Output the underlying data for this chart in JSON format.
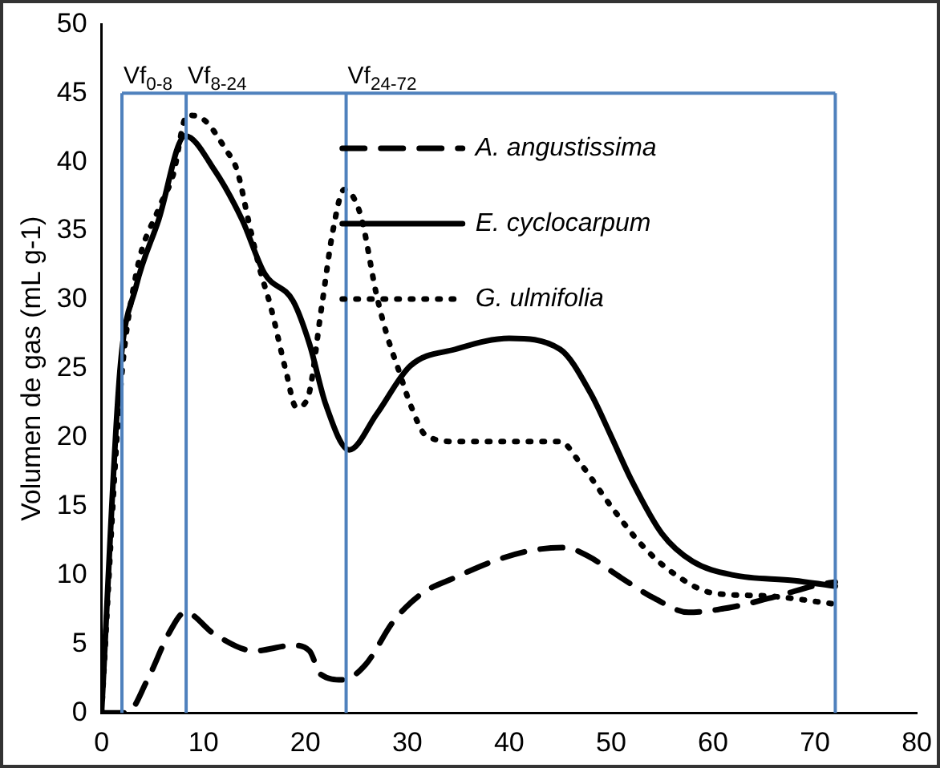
{
  "chart_data": {
    "type": "line",
    "ylabel": "Volumen de gas (mL g-1)",
    "xlim": [
      0,
      80
    ],
    "xticks": [
      0,
      10,
      20,
      30,
      40,
      50,
      60,
      70,
      80
    ],
    "ylim": [
      0,
      50
    ],
    "yticks": [
      0,
      5,
      10,
      15,
      20,
      25,
      30,
      35,
      40,
      45,
      50
    ],
    "grid": false,
    "legend": "top right",
    "marker": "none",
    "series": [
      {
        "name": "A. angustissima",
        "color": "#000000",
        "line_style": "dashed",
        "x": [
          0,
          2.5,
          4.5,
          6.7,
          8.2,
          11.1,
          15,
          18.8,
          20.4,
          21.5,
          23.7,
          25.9,
          28.7,
          31.5,
          34.6,
          38.4,
          42.2,
          45.5,
          47.7,
          51,
          54.3,
          57.6,
          62,
          66.4,
          70.3,
          72
        ],
        "values": [
          0,
          0,
          2.4,
          5.9,
          7.3,
          5.7,
          4.5,
          4.9,
          4.5,
          2.8,
          2.4,
          3.5,
          6.7,
          8.7,
          9.8,
          11,
          11.8,
          12,
          11.4,
          9.8,
          8.3,
          7.3,
          7.7,
          8.5,
          9.3,
          9.5
        ]
      },
      {
        "name": "E. cyclocarpum",
        "color": "#000000",
        "line_style": "solid",
        "x": [
          0,
          1.8,
          3.4,
          5.6,
          8.2,
          11.1,
          13.8,
          16,
          18.8,
          20.4,
          22,
          24.3,
          27,
          30.3,
          34.7,
          40,
          45,
          48,
          50,
          52,
          55,
          58,
          62,
          68,
          72
        ],
        "values": [
          0,
          24.8,
          31,
          35.8,
          41.9,
          39.4,
          35.8,
          31.9,
          29.9,
          26.8,
          22.4,
          19.1,
          21.7,
          25.2,
          26.4,
          27.2,
          26.4,
          23.2,
          20.1,
          16.9,
          13,
          11,
          10,
          9.6,
          9.2
        ]
      },
      {
        "name": "G. ulmifolia",
        "color": "#000000",
        "line_style": "dotted",
        "x": [
          0,
          1.8,
          3.4,
          5.6,
          7,
          8.4,
          10,
          12.2,
          13.3,
          14.4,
          15.5,
          16.6,
          18.1,
          19.1,
          20.2,
          21.6,
          22.7,
          23.8,
          25.4,
          27,
          28.1,
          29.2,
          30.3,
          31.9,
          35,
          40,
          45,
          47,
          50,
          53,
          56,
          60,
          65,
          72
        ],
        "values": [
          0,
          23,
          31.9,
          36.6,
          39,
          43.4,
          43.1,
          40.9,
          39.4,
          35.8,
          32.3,
          29.5,
          24.8,
          22.2,
          22.8,
          29.5,
          35,
          38,
          36.2,
          30.3,
          27.2,
          24.8,
          22.4,
          20.1,
          19.7,
          19.7,
          19.7,
          18.1,
          15,
          12.2,
          10.2,
          8.7,
          8.5,
          7.9
        ]
      }
    ],
    "ref_lines": [
      {
        "axis": "y",
        "value": 45,
        "color": "#4f81bd"
      },
      {
        "axis": "x",
        "value": 2,
        "label": "Vf$_{0-8}$",
        "color": "#4f81bd"
      },
      {
        "axis": "x",
        "value": 8.3,
        "label": "Vf$_{8-24}$",
        "color": "#4f81bd"
      },
      {
        "axis": "x",
        "value": 24,
        "label": "Vf$_{24-72}$",
        "color": "#4f81bd"
      },
      {
        "axis": "x",
        "value": 72,
        "color": "#4f81bd"
      }
    ]
  }
}
